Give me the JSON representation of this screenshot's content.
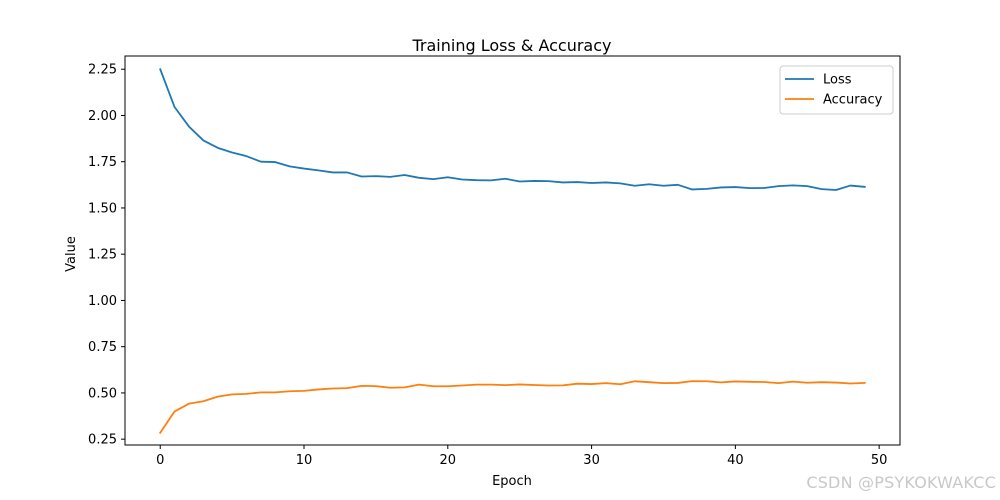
{
  "chart_data": {
    "type": "line",
    "title": "Training Loss & Accuracy",
    "xlabel": "Epoch",
    "ylabel": "Value",
    "xlim": [
      -2.45,
      51.45
    ],
    "ylim": [
      0.2185,
      2.3215
    ],
    "xticks": [
      0,
      10,
      20,
      30,
      40,
      50
    ],
    "yticks": [
      0.25,
      0.5,
      0.75,
      1.0,
      1.25,
      1.5,
      1.75,
      2.0,
      2.25
    ],
    "grid": false,
    "legend_position": "top-right",
    "x": [
      0,
      1,
      2,
      3,
      4,
      5,
      6,
      7,
      8,
      9,
      10,
      11,
      12,
      13,
      14,
      15,
      16,
      17,
      18,
      19,
      20,
      21,
      22,
      23,
      24,
      25,
      26,
      27,
      28,
      29,
      30,
      31,
      32,
      33,
      34,
      35,
      36,
      37,
      38,
      39,
      40,
      41,
      42,
      43,
      44,
      45,
      46,
      47,
      48,
      49
    ],
    "series": [
      {
        "name": "Loss",
        "color": "#1f77b4",
        "values": [
          2.25,
          2.045,
          1.94,
          1.865,
          1.825,
          1.8,
          1.78,
          1.75,
          1.748,
          1.725,
          1.713,
          1.703,
          1.692,
          1.692,
          1.67,
          1.672,
          1.668,
          1.678,
          1.663,
          1.656,
          1.666,
          1.654,
          1.65,
          1.649,
          1.658,
          1.643,
          1.646,
          1.645,
          1.638,
          1.64,
          1.635,
          1.638,
          1.633,
          1.62,
          1.628,
          1.62,
          1.625,
          1.6,
          1.603,
          1.611,
          1.613,
          1.607,
          1.608,
          1.618,
          1.622,
          1.618,
          1.602,
          1.597,
          1.621,
          1.614
        ]
      },
      {
        "name": "Accuracy",
        "color": "#ff7f0e",
        "values": [
          0.285,
          0.4,
          0.442,
          0.455,
          0.48,
          0.492,
          0.495,
          0.503,
          0.503,
          0.509,
          0.511,
          0.519,
          0.524,
          0.526,
          0.538,
          0.537,
          0.528,
          0.53,
          0.545,
          0.536,
          0.536,
          0.54,
          0.545,
          0.545,
          0.542,
          0.546,
          0.543,
          0.54,
          0.541,
          0.55,
          0.548,
          0.553,
          0.547,
          0.563,
          0.558,
          0.553,
          0.554,
          0.564,
          0.563,
          0.557,
          0.562,
          0.56,
          0.559,
          0.553,
          0.561,
          0.555,
          0.558,
          0.556,
          0.551,
          0.554
        ]
      }
    ]
  },
  "watermark": "CSDN @PSYKOKWAKCC"
}
